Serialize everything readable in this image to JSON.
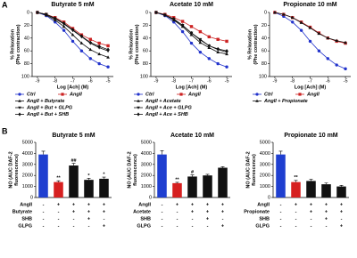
{
  "panel_labels": [
    "A",
    "B"
  ],
  "chart_data": [
    {
      "type": "line",
      "title": "Butyrate 5 mM",
      "xlabel": "Log [Ach] (M)",
      "ylabel": [
        "% Relaxation",
        "(Phe contraction)"
      ],
      "x": [
        -9,
        -8.5,
        -8,
        -7.5,
        -7,
        -6.5,
        -6,
        -5.5,
        -5
      ],
      "xlim": [
        -9.3,
        -4.7
      ],
      "xticks": [
        -9,
        -8,
        -7,
        -6,
        -5
      ],
      "ylim": [
        0,
        100
      ],
      "y_inverted": true,
      "yticks": [
        0,
        20,
        40,
        60,
        80,
        100
      ],
      "series": [
        {
          "name": "Ctrl",
          "color": "#2233cc",
          "marker": "circle",
          "values": [
            0,
            5,
            15,
            28,
            45,
            60,
            72,
            80,
            85
          ]
        },
        {
          "name": "AngII",
          "color": "#cc2222",
          "marker": "square",
          "values": [
            0,
            3,
            8,
            15,
            25,
            35,
            42,
            48,
            52
          ]
        },
        {
          "name": "AngII + Butyrate",
          "color": "#111111",
          "marker": "triangle",
          "values": [
            0,
            4,
            12,
            22,
            35,
            48,
            58,
            65,
            70
          ]
        },
        {
          "name": "AngII + But + GLPG",
          "color": "#111111",
          "marker": "triangle-down",
          "values": [
            0,
            3,
            10,
            18,
            28,
            38,
            48,
            55,
            60
          ]
        },
        {
          "name": "AngII + But + SHB",
          "color": "#111111",
          "marker": "diamond",
          "values": [
            0,
            3,
            9,
            17,
            27,
            37,
            47,
            53,
            58
          ]
        }
      ]
    },
    {
      "type": "line",
      "title": "Acetate 10 mM",
      "xlabel": "Log [Ach] (M)",
      "ylabel": [
        "% Relaxation",
        "(Phe contraction)"
      ],
      "x": [
        -9,
        -8.5,
        -8,
        -7.5,
        -7,
        -6.5,
        -6,
        -5.5,
        -5
      ],
      "xlim": [
        -9.3,
        -4.7
      ],
      "xticks": [
        -9,
        -8,
        -7,
        -6,
        -5
      ],
      "ylim": [
        0,
        100
      ],
      "y_inverted": true,
      "yticks": [
        0,
        20,
        40,
        60,
        80,
        100
      ],
      "series": [
        {
          "name": "Ctrl",
          "color": "#2233cc",
          "marker": "circle",
          "values": [
            0,
            5,
            15,
            30,
            48,
            62,
            72,
            80,
            85
          ]
        },
        {
          "name": "AngII",
          "color": "#cc2222",
          "marker": "square",
          "values": [
            0,
            3,
            8,
            14,
            22,
            30,
            38,
            42,
            45
          ]
        },
        {
          "name": "AngII + Acetate",
          "color": "#111111",
          "marker": "triangle",
          "values": [
            0,
            4,
            12,
            22,
            35,
            47,
            55,
            62,
            65
          ]
        },
        {
          "name": "AngII + Ace + GLPG",
          "color": "#111111",
          "marker": "triangle-down",
          "values": [
            0,
            4,
            11,
            20,
            32,
            42,
            52,
            58,
            62
          ]
        },
        {
          "name": "AngII + Ace + SHB",
          "color": "#111111",
          "marker": "diamond",
          "values": [
            0,
            4,
            10,
            20,
            32,
            43,
            52,
            57,
            60
          ]
        }
      ]
    },
    {
      "type": "line",
      "title": "Propionate 10 mM",
      "xlabel": "Log [Ach] (M)",
      "ylabel": [
        "% Relaxation",
        "(Phe contraction)"
      ],
      "x": [
        -9,
        -8.5,
        -8,
        -7.5,
        -7,
        -6.5,
        -6,
        -5.5,
        -5
      ],
      "xlim": [
        -9.3,
        -4.7
      ],
      "xticks": [
        -9,
        -8,
        -7,
        -6,
        -5
      ],
      "ylim": [
        0,
        100
      ],
      "y_inverted": true,
      "yticks": [
        0,
        20,
        40,
        60,
        80,
        100
      ],
      "series": [
        {
          "name": "Ctrl",
          "color": "#2233cc",
          "marker": "circle",
          "values": [
            0,
            6,
            15,
            28,
            45,
            60,
            72,
            82,
            88
          ]
        },
        {
          "name": "AngII",
          "color": "#cc2222",
          "marker": "square",
          "values": [
            0,
            3,
            8,
            15,
            23,
            32,
            40,
            45,
            48
          ]
        },
        {
          "name": "AngII + Propionate",
          "color": "#111111",
          "marker": "triangle",
          "values": [
            0,
            3,
            8,
            16,
            24,
            33,
            40,
            44,
            47
          ]
        }
      ]
    },
    {
      "type": "bar",
      "title": "Butyrate 5 mM",
      "ylabel": [
        "NO (AUC DAF-2",
        "fluorescence)"
      ],
      "ylim": [
        0,
        5000
      ],
      "yticks": [
        0,
        1000,
        2000,
        3000,
        4000,
        5000
      ],
      "values": [
        3900,
        1400,
        2900,
        1600,
        1700
      ],
      "errors": [
        300,
        120,
        200,
        150,
        150
      ],
      "colors": [
        "#1f3fd0",
        "#d62020",
        "#111111",
        "#111111",
        "#111111"
      ],
      "sig_labels": [
        null,
        "**",
        "##",
        "*",
        "*"
      ],
      "row_labels": [
        "AngII",
        "Butyrate",
        "SHB",
        "GLPG"
      ],
      "row_signs": [
        [
          "-",
          "+",
          "+",
          "+",
          "+"
        ],
        [
          "-",
          "-",
          "+",
          "+",
          "+"
        ],
        [
          "-",
          "-",
          "-",
          "+",
          "-"
        ],
        [
          "-",
          "-",
          "-",
          "-",
          "+"
        ]
      ]
    },
    {
      "type": "bar",
      "title": "Acetate 10 mM",
      "ylabel": [
        "NO (AUC DAF-2",
        "fluorescence)"
      ],
      "ylim": [
        0,
        5000
      ],
      "yticks": [
        0,
        1000,
        2000,
        3000,
        4000,
        5000
      ],
      "values": [
        3900,
        1300,
        1900,
        2000,
        2700
      ],
      "errors": [
        350,
        80,
        150,
        100,
        100
      ],
      "colors": [
        "#1f3fd0",
        "#d62020",
        "#111111",
        "#111111",
        "#111111"
      ],
      "sig_labels": [
        null,
        "**",
        "#",
        null,
        null
      ],
      "row_labels": [
        "AngII",
        "Acetate",
        "SHB",
        "GLPG"
      ],
      "row_signs": [
        [
          "-",
          "+",
          "+",
          "+",
          "+"
        ],
        [
          "-",
          "-",
          "+",
          "+",
          "+"
        ],
        [
          "-",
          "-",
          "-",
          "+",
          "-"
        ],
        [
          "-",
          "-",
          "-",
          "-",
          "+"
        ]
      ]
    },
    {
      "type": "bar",
      "title": "Propionate 10 mM",
      "ylabel": [
        "NO (AUC DAF-2",
        "fluorescence)"
      ],
      "ylim": [
        0,
        5000
      ],
      "yticks": [
        0,
        1000,
        2000,
        3000,
        4000,
        5000
      ],
      "values": [
        3900,
        1400,
        1500,
        1200,
        1000
      ],
      "errors": [
        300,
        150,
        150,
        120,
        100
      ],
      "colors": [
        "#1f3fd0",
        "#d62020",
        "#111111",
        "#111111",
        "#111111"
      ],
      "sig_labels": [
        null,
        "**",
        null,
        null,
        null
      ],
      "row_labels": [
        "AngII",
        "Propionate",
        "SHB",
        "GLPG"
      ],
      "row_signs": [
        [
          "-",
          "+",
          "+",
          "+",
          "+"
        ],
        [
          "-",
          "-",
          "+",
          "+",
          "+"
        ],
        [
          "-",
          "-",
          "-",
          "+",
          "-"
        ],
        [
          "-",
          "-",
          "-",
          "-",
          "+"
        ]
      ]
    }
  ]
}
